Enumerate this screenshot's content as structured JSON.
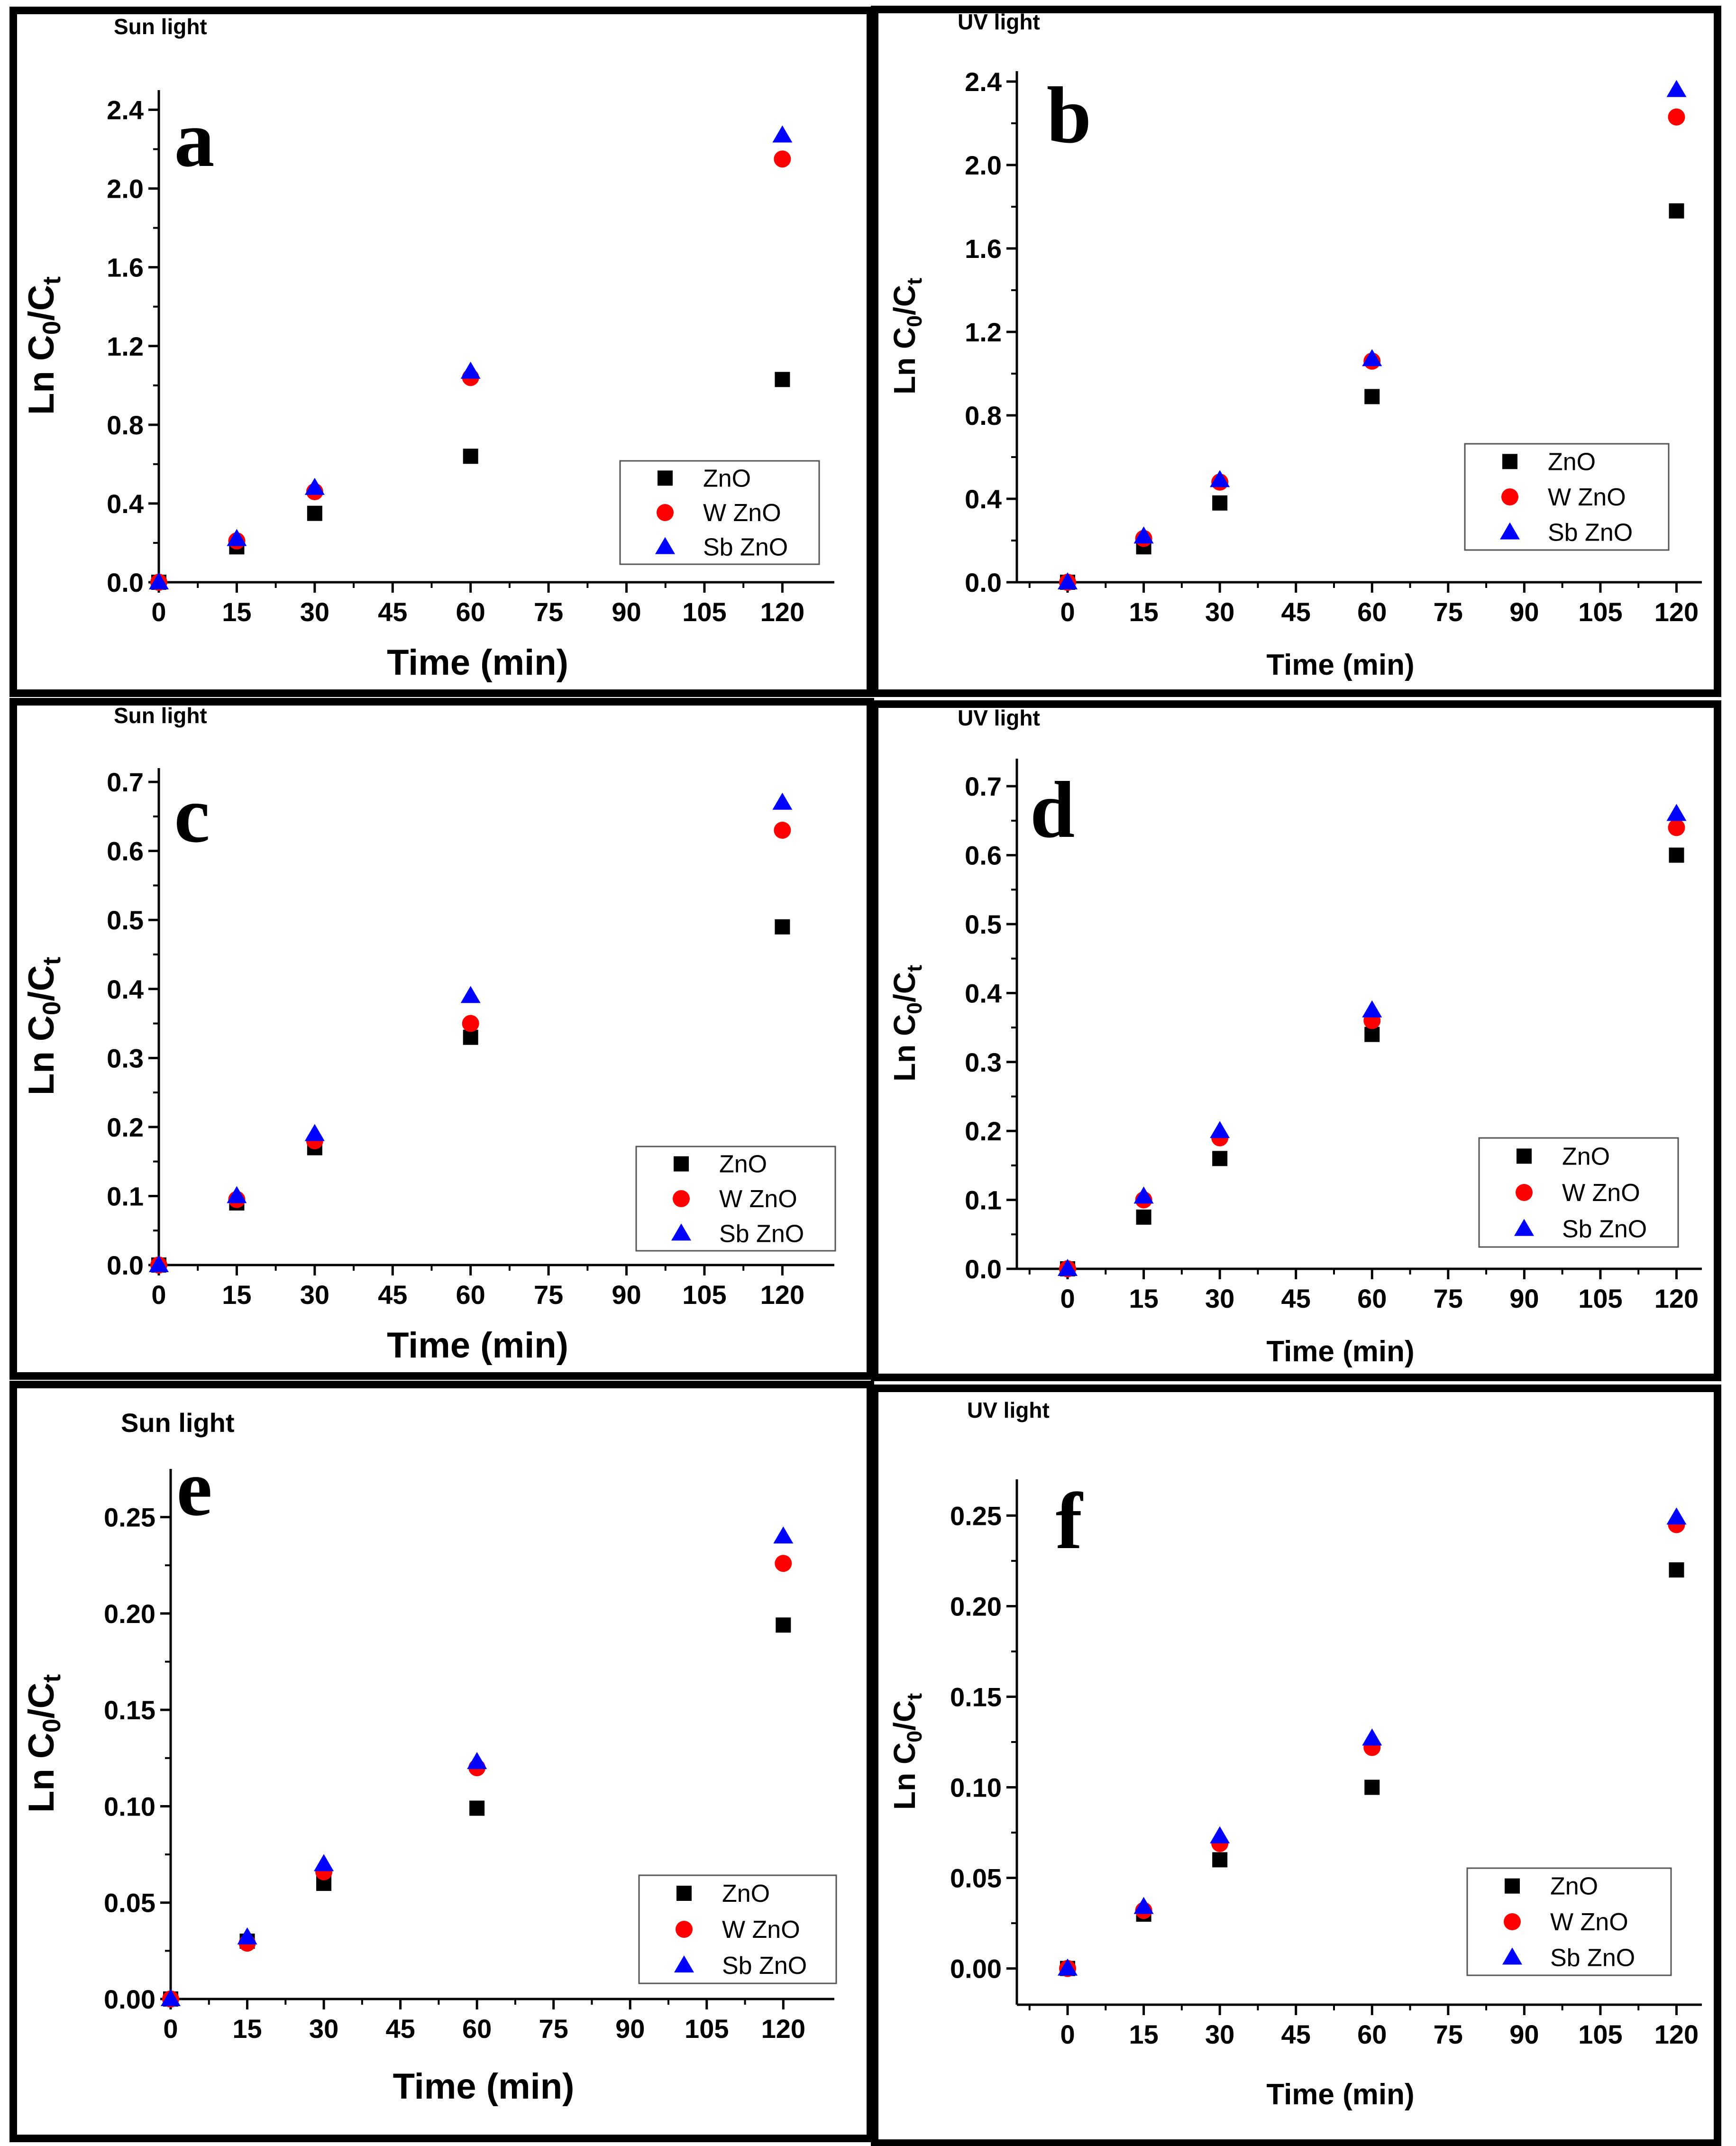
{
  "chart_data": [
    {
      "id": "a",
      "type": "scatter",
      "panel_letter": "a",
      "light_title": "Sun light",
      "xlabel": "Time (min)",
      "ylabel": {
        "main": "Ln C",
        "sub0": "0",
        "slash": "/C",
        "subt": "t"
      },
      "xlim": [
        0,
        130
      ],
      "ylim": [
        0,
        2.5
      ],
      "xticks": [
        "0",
        "15",
        "30",
        "45",
        "60",
        "75",
        "90",
        "105",
        "120"
      ],
      "yticks": [
        "0.0",
        "0.4",
        "0.8",
        "1.2",
        "1.6",
        "2.0",
        "2.4"
      ],
      "x": [
        0,
        15,
        30,
        60,
        120
      ],
      "series": [
        {
          "name": "ZnO",
          "marker": "square",
          "color": "#000000",
          "values": [
            0,
            0.18,
            0.35,
            0.64,
            1.03
          ]
        },
        {
          "name": "W ZnO",
          "marker": "circle",
          "color": "#ff0000",
          "values": [
            0,
            0.21,
            0.46,
            1.04,
            2.15
          ]
        },
        {
          "name": "Sb ZnO",
          "marker": "triangle",
          "color": "#0000ff",
          "values": [
            0,
            0.22,
            0.48,
            1.07,
            2.27
          ]
        }
      ],
      "legend": "bottom-right"
    },
    {
      "id": "b",
      "type": "scatter",
      "panel_letter": "b",
      "light_title": "UV light",
      "xlabel": "Time (min)",
      "ylabel": {
        "main": "Ln C",
        "sub0": "0",
        "slash": "/C",
        "subt": "t"
      },
      "xlim": [
        -10,
        125
      ],
      "ylim": [
        0,
        2.45
      ],
      "xticks": [
        "0",
        "15",
        "30",
        "45",
        "60",
        "75",
        "90",
        "105",
        "120"
      ],
      "yticks": [
        "0.0",
        "0.4",
        "0.8",
        "1.2",
        "1.6",
        "2.0",
        "2.4"
      ],
      "x": [
        0,
        15,
        30,
        60,
        120
      ],
      "series": [
        {
          "name": "ZnO",
          "marker": "square",
          "color": "#000000",
          "values": [
            0,
            0.17,
            0.38,
            0.89,
            1.78
          ]
        },
        {
          "name": "W ZnO",
          "marker": "circle",
          "color": "#ff0000",
          "values": [
            0,
            0.21,
            0.48,
            1.06,
            2.23
          ]
        },
        {
          "name": "Sb ZnO",
          "marker": "triangle",
          "color": "#0000ff",
          "values": [
            0,
            0.22,
            0.49,
            1.07,
            2.36
          ]
        }
      ],
      "legend": "bottom-right"
    },
    {
      "id": "c",
      "type": "scatter",
      "panel_letter": "c",
      "light_title": "Sun light",
      "xlabel": "Time (min)",
      "ylabel": {
        "main": "Ln C",
        "sub0": "0",
        "slash": "/C",
        "subt": "t"
      },
      "xlim": [
        0,
        130
      ],
      "ylim": [
        0,
        0.72
      ],
      "xticks": [
        "0",
        "15",
        "30",
        "45",
        "60",
        "75",
        "90",
        "105",
        "120"
      ],
      "yticks": [
        "0.0",
        "0.1",
        "0.2",
        "0.3",
        "0.4",
        "0.5",
        "0.6",
        "0.7"
      ],
      "x": [
        0,
        15,
        30,
        60,
        120
      ],
      "series": [
        {
          "name": "ZnO",
          "marker": "square",
          "color": "#000000",
          "values": [
            0,
            0.09,
            0.17,
            0.33,
            0.49
          ]
        },
        {
          "name": "W ZnO",
          "marker": "circle",
          "color": "#ff0000",
          "values": [
            0,
            0.095,
            0.18,
            0.35,
            0.63
          ]
        },
        {
          "name": "Sb ZnO",
          "marker": "triangle",
          "color": "#0000ff",
          "values": [
            0,
            0.1,
            0.19,
            0.39,
            0.67
          ]
        }
      ],
      "legend": "bottom-right"
    },
    {
      "id": "d",
      "type": "scatter",
      "panel_letter": "d",
      "light_title": "UV light",
      "xlabel": "Time (min)",
      "ylabel": {
        "main": "Ln C",
        "sub0": "0",
        "slash": "/C",
        "subt": "t"
      },
      "xlim": [
        -10,
        125
      ],
      "ylim": [
        0,
        0.74
      ],
      "xticks": [
        "0",
        "15",
        "30",
        "45",
        "60",
        "75",
        "90",
        "105",
        "120"
      ],
      "yticks": [
        "0.0",
        "0.1",
        "0.2",
        "0.3",
        "0.4",
        "0.5",
        "0.6",
        "0.7"
      ],
      "x": [
        0,
        15,
        30,
        60,
        120
      ],
      "series": [
        {
          "name": "ZnO",
          "marker": "square",
          "color": "#000000",
          "values": [
            0,
            0.075,
            0.16,
            0.34,
            0.6
          ]
        },
        {
          "name": "W ZnO",
          "marker": "circle",
          "color": "#ff0000",
          "values": [
            0,
            0.1,
            0.19,
            0.36,
            0.64
          ]
        },
        {
          "name": "Sb ZnO",
          "marker": "triangle",
          "color": "#0000ff",
          "values": [
            0,
            0.105,
            0.2,
            0.375,
            0.66
          ]
        }
      ],
      "legend": "bottom-right"
    },
    {
      "id": "e",
      "type": "scatter",
      "panel_letter": "e",
      "light_title": "Sun light",
      "xlabel": "Time (min)",
      "ylabel": {
        "main": "Ln C",
        "sub0": "0",
        "slash": "/C",
        "subt": "t"
      },
      "xlim": [
        0,
        130
      ],
      "ylim": [
        0,
        0.275
      ],
      "xticks": [
        "0",
        "15",
        "30",
        "45",
        "60",
        "75",
        "90",
        "105",
        "120"
      ],
      "yticks": [
        "0.00",
        "0.05",
        "0.10",
        "0.15",
        "0.20",
        "0.25"
      ],
      "x": [
        0,
        15,
        30,
        60,
        120
      ],
      "series": [
        {
          "name": "ZnO",
          "marker": "square",
          "color": "#000000",
          "values": [
            0,
            0.03,
            0.06,
            0.099,
            0.194
          ]
        },
        {
          "name": "W ZnO",
          "marker": "circle",
          "color": "#ff0000",
          "values": [
            0,
            0.029,
            0.066,
            0.12,
            0.226
          ]
        },
        {
          "name": "Sb ZnO",
          "marker": "triangle",
          "color": "#0000ff",
          "values": [
            0,
            0.032,
            0.07,
            0.123,
            0.24
          ]
        }
      ],
      "legend": "bottom-right"
    },
    {
      "id": "f",
      "type": "scatter",
      "panel_letter": "f",
      "light_title": "UV light",
      "xlabel": "Time (min)",
      "ylabel": {
        "main": "Ln C",
        "sub0": "0",
        "slash": "/C",
        "subt": "t"
      },
      "xlim": [
        -10,
        125
      ],
      "ylim": [
        -0.02,
        0.27
      ],
      "xticks": [
        "0",
        "15",
        "30",
        "45",
        "60",
        "75",
        "90",
        "105",
        "120"
      ],
      "yticks": [
        "0.00",
        "0.05",
        "0.10",
        "0.15",
        "0.20",
        "0.25"
      ],
      "x": [
        0,
        15,
        30,
        60,
        120
      ],
      "series": [
        {
          "name": "ZnO",
          "marker": "square",
          "color": "#000000",
          "values": [
            0,
            0.03,
            0.06,
            0.1,
            0.22
          ]
        },
        {
          "name": "W ZnO",
          "marker": "circle",
          "color": "#ff0000",
          "values": [
            0,
            0.032,
            0.069,
            0.122,
            0.245
          ]
        },
        {
          "name": "Sb ZnO",
          "marker": "triangle",
          "color": "#0000ff",
          "values": [
            0,
            0.034,
            0.073,
            0.127,
            0.249
          ]
        }
      ],
      "legend": "bottom-right"
    }
  ]
}
